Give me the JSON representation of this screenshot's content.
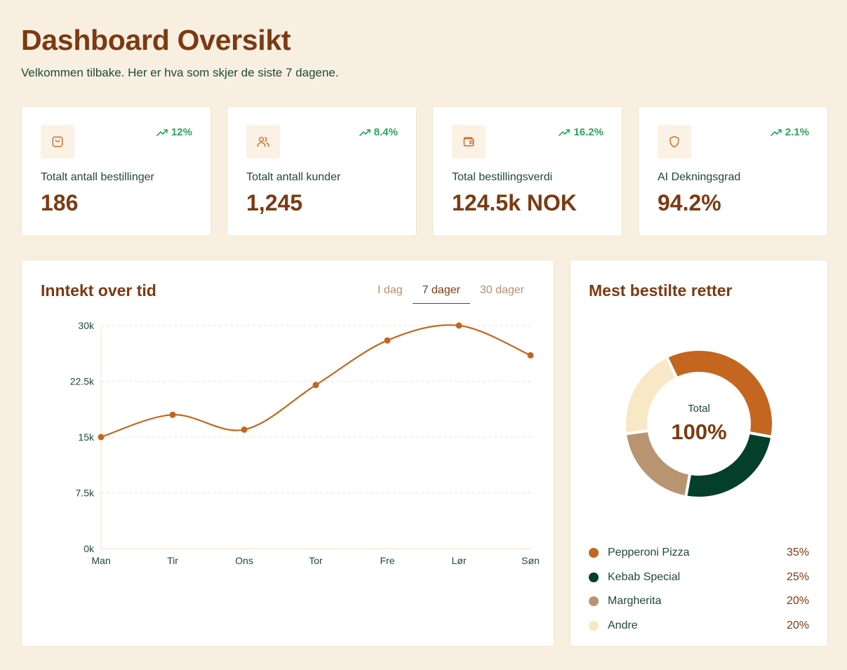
{
  "header": {
    "title": "Dashboard Oversikt",
    "subtitle": "Velkommen tilbake. Her er hva som skjer de siste 7 dagene."
  },
  "stats": [
    {
      "label": "Totalt antall bestillinger",
      "value": "186",
      "trend": "12%",
      "icon": "shopping-bag-icon"
    },
    {
      "label": "Totalt antall kunder",
      "value": "1,245",
      "trend": "8.4%",
      "icon": "users-icon"
    },
    {
      "label": "Total bestillingsverdi",
      "value": "124.5k NOK",
      "trend": "16.2%",
      "icon": "wallet-icon"
    },
    {
      "label": "AI Dekningsgrad",
      "value": "94.2%",
      "trend": "2.1%",
      "icon": "shield-icon"
    }
  ],
  "revenue": {
    "title": "Inntekt over tid",
    "tabs": [
      {
        "label": "I dag",
        "active": false
      },
      {
        "label": "7 dager",
        "active": true
      },
      {
        "label": "30 dager",
        "active": false
      }
    ]
  },
  "dishes": {
    "title": "Mest bestilte retter",
    "center_label": "Total",
    "center_value": "100%",
    "items": [
      {
        "name": "Pepperoni Pizza",
        "pct": "35%",
        "value": 35,
        "color": "#c4661f"
      },
      {
        "name": "Kebab Special",
        "pct": "25%",
        "value": 25,
        "color": "#033f2b"
      },
      {
        "name": "Margherita",
        "pct": "20%",
        "value": 20,
        "color": "#b89570"
      },
      {
        "name": "Andre",
        "pct": "20%",
        "value": 20,
        "color": "#f8e8c6"
      }
    ]
  },
  "colors": {
    "accent": "#c4661f",
    "title": "#7c3a12",
    "trend_up": "#2aa55a",
    "background": "#f8efe1"
  },
  "chart_data": {
    "type": "line",
    "categories": [
      "Man",
      "Tir",
      "Ons",
      "Tor",
      "Fre",
      "Lør",
      "Søn"
    ],
    "series": [
      {
        "values": [
          15000,
          18000,
          16000,
          22000,
          28000,
          30000,
          26000
        ]
      }
    ],
    "yticks": [
      "0k",
      "7.5k",
      "15k",
      "22.5k",
      "30k"
    ],
    "ytick_values": [
      0,
      7500,
      15000,
      22500,
      30000
    ],
    "ylim": [
      0,
      30000
    ],
    "grid": true,
    "color": "#c4661f"
  }
}
